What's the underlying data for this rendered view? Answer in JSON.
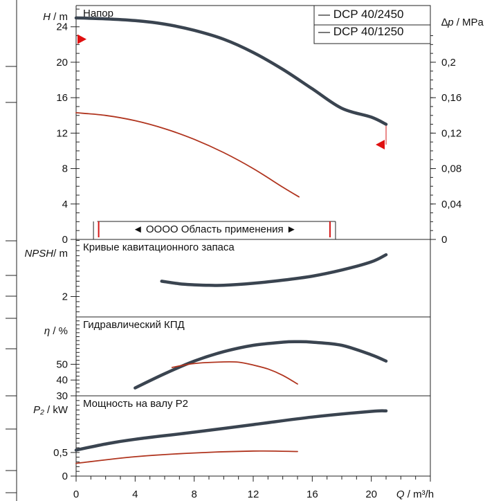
{
  "chart_data": {
    "type": "line",
    "x_axis": {
      "label_var": "Q",
      "label_unit": " / m³/h",
      "ticks": [
        "0",
        "4",
        "8",
        "12",
        "16",
        "20"
      ],
      "range": [
        0,
        24
      ]
    },
    "legend": {
      "placement": "top-right",
      "entries": [
        {
          "name": "DCP 40/2450",
          "color": "#3a4450"
        },
        {
          "name": "DCP 40/1250",
          "color": "#b0341e"
        }
      ]
    },
    "panels": [
      {
        "id": "head",
        "title": "Напор",
        "ylabel_var": "H",
        "ylabel_unit": " / m",
        "ylim": [
          0,
          26.4
        ],
        "yticks": [
          "0",
          "4",
          "8",
          "12",
          "16",
          "20",
          "24"
        ],
        "secondary_axis": {
          "label_prefix": "∆",
          "label_var": "p",
          "label_unit": " / MPa",
          "ticks": [
            "0",
            "0,04",
            "0,08",
            "0,12",
            "0,16",
            "0,2"
          ],
          "ratio_to_primary": 100
        },
        "operating_range": {
          "label": "◄ OOOO Область применения ►",
          "x": [
            1.2,
            17.2
          ]
        },
        "markers": [
          {
            "x": 0,
            "y": 22.6,
            "direction": "right"
          },
          {
            "x": 21,
            "y": 10.7,
            "direction": "left"
          }
        ],
        "series": [
          {
            "name": "DCP 40/2450",
            "x": [
              0,
              2,
              4,
              6,
              8,
              10,
              12,
              14,
              16,
              18,
              20,
              21
            ],
            "y": [
              25.0,
              24.9,
              24.7,
              24.3,
              23.6,
              22.6,
              21.1,
              19.2,
              17.0,
              14.8,
              13.8,
              13.0
            ]
          },
          {
            "name": "DCP 40/1250",
            "x": [
              0,
              2,
              4,
              6,
              8,
              10,
              12,
              14,
              15.1
            ],
            "y": [
              14.3,
              14.0,
              13.4,
              12.5,
              11.3,
              9.8,
              8.0,
              5.9,
              4.8
            ]
          }
        ]
      },
      {
        "id": "npsh",
        "title": "Кривые кавитационного запаса",
        "ylabel_var": "NPSH",
        "ylabel_unit": "/ m",
        "ylim": [
          0,
          7.6
        ],
        "yticks": [
          "2"
        ],
        "ytick_values": [
          2
        ],
        "series": [
          {
            "name": "DCP 40/2450",
            "x": [
              5.8,
              7,
              8,
              9,
              10,
              12,
              14,
              16,
              18,
              20,
              21
            ],
            "y": [
              3.5,
              3.25,
              3.15,
              3.1,
              3.1,
              3.3,
              3.6,
              4.0,
              4.6,
              5.4,
              6.1
            ]
          }
        ]
      },
      {
        "id": "eff",
        "title": "Гидравлический КПД",
        "ylabel_var": "η",
        "ylabel_unit": " / %",
        "ylim": [
          30,
          80
        ],
        "yticks": [
          "30",
          "40",
          "50"
        ],
        "ytick_values": [
          30,
          40,
          50
        ],
        "series": [
          {
            "name": "DCP 40/2450",
            "x": [
              4,
              6,
              8,
              10,
              12,
              14,
              15,
              16,
              18,
              20,
              21
            ],
            "y": [
              35,
              44,
              52,
              58,
              62,
              64,
              64.3,
              64,
              62,
              56,
              52
            ]
          },
          {
            "name": "DCP 40/1250",
            "x": [
              6.5,
              8,
              10,
              11,
              12,
              13,
              14,
              15
            ],
            "y": [
              48,
              50.5,
              51.5,
              51.3,
              49.5,
              47,
              43,
              37.5
            ]
          }
        ]
      },
      {
        "id": "power",
        "title": "Мощность на валу Р2",
        "ylabel_var": "P₂",
        "ylabel_unit": " / kW",
        "ylim": [
          0,
          1.7
        ],
        "yticks": [
          "0",
          "0,5"
        ],
        "ytick_values": [
          0,
          0.5
        ],
        "series": [
          {
            "name": "DCP 40/2450",
            "x": [
              0,
              2,
              4,
              8,
              12,
              16,
              20,
              21
            ],
            "y": [
              0.55,
              0.68,
              0.78,
              0.93,
              1.09,
              1.25,
              1.37,
              1.38
            ]
          },
          {
            "name": "DCP 40/1250",
            "x": [
              0,
              4,
              8,
              12,
              15
            ],
            "y": [
              0.27,
              0.41,
              0.49,
              0.53,
              0.52
            ]
          }
        ]
      }
    ]
  }
}
